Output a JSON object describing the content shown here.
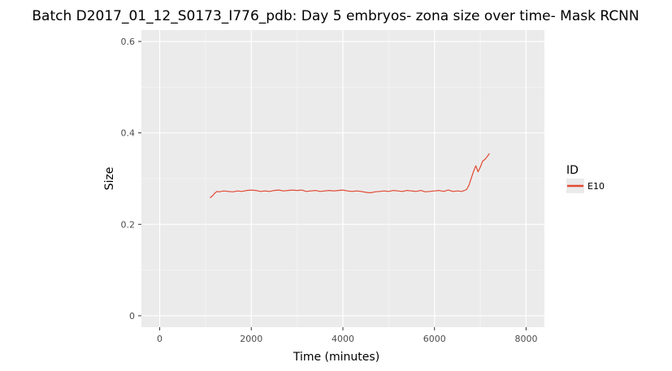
{
  "chart_data": {
    "type": "line",
    "title": "Batch D2017_01_12_S0173_I776_pdb: Day 5 embryos- zona size over time- Mask RCNN",
    "xlabel": "Time (minutes)",
    "ylabel": "Size",
    "xlim": [
      -400,
      8400
    ],
    "ylim": [
      -0.025,
      0.625
    ],
    "x_ticks": [
      {
        "value": 0,
        "label": "0"
      },
      {
        "value": 2000,
        "label": "2000"
      },
      {
        "value": 4000,
        "label": "4000"
      },
      {
        "value": 6000,
        "label": "6000"
      },
      {
        "value": 8000,
        "label": "8000"
      }
    ],
    "y_ticks": [
      {
        "value": 0,
        "label": "0"
      },
      {
        "value": 0.2,
        "label": "0.2"
      },
      {
        "value": 0.4,
        "label": "0.4"
      },
      {
        "value": 0.6,
        "label": "0.6"
      }
    ],
    "grid": true,
    "legend": {
      "title": "ID",
      "position": "right"
    },
    "colors": {
      "panel": "#ebebeb",
      "grid_major": "#ffffff",
      "grid_minor": "#f5f5f5",
      "series": "#e24a33"
    },
    "series": [
      {
        "name": "E10",
        "x": [
          1100,
          1150,
          1200,
          1250,
          1300,
          1400,
          1500,
          1600,
          1700,
          1800,
          1900,
          2000,
          2100,
          2200,
          2300,
          2400,
          2500,
          2600,
          2700,
          2800,
          2900,
          3000,
          3100,
          3200,
          3300,
          3400,
          3500,
          3600,
          3700,
          3800,
          3900,
          4000,
          4100,
          4200,
          4300,
          4400,
          4500,
          4600,
          4700,
          4800,
          4900,
          5000,
          5100,
          5200,
          5300,
          5400,
          5500,
          5600,
          5700,
          5800,
          5900,
          6000,
          6100,
          6200,
          6300,
          6400,
          6500,
          6600,
          6700,
          6750,
          6800,
          6850,
          6900,
          6950,
          7000,
          7050,
          7100,
          7150,
          7200
        ],
        "y": [
          0.258,
          0.262,
          0.268,
          0.272,
          0.271,
          0.273,
          0.272,
          0.271,
          0.273,
          0.272,
          0.274,
          0.275,
          0.274,
          0.272,
          0.273,
          0.272,
          0.274,
          0.275,
          0.273,
          0.274,
          0.275,
          0.274,
          0.275,
          0.272,
          0.273,
          0.274,
          0.272,
          0.273,
          0.274,
          0.273,
          0.274,
          0.275,
          0.273,
          0.272,
          0.273,
          0.272,
          0.27,
          0.269,
          0.271,
          0.272,
          0.273,
          0.272,
          0.274,
          0.273,
          0.272,
          0.274,
          0.273,
          0.272,
          0.274,
          0.271,
          0.272,
          0.273,
          0.274,
          0.272,
          0.275,
          0.272,
          0.273,
          0.272,
          0.276,
          0.285,
          0.3,
          0.315,
          0.328,
          0.315,
          0.325,
          0.338,
          0.342,
          0.348,
          0.355
        ]
      }
    ]
  }
}
